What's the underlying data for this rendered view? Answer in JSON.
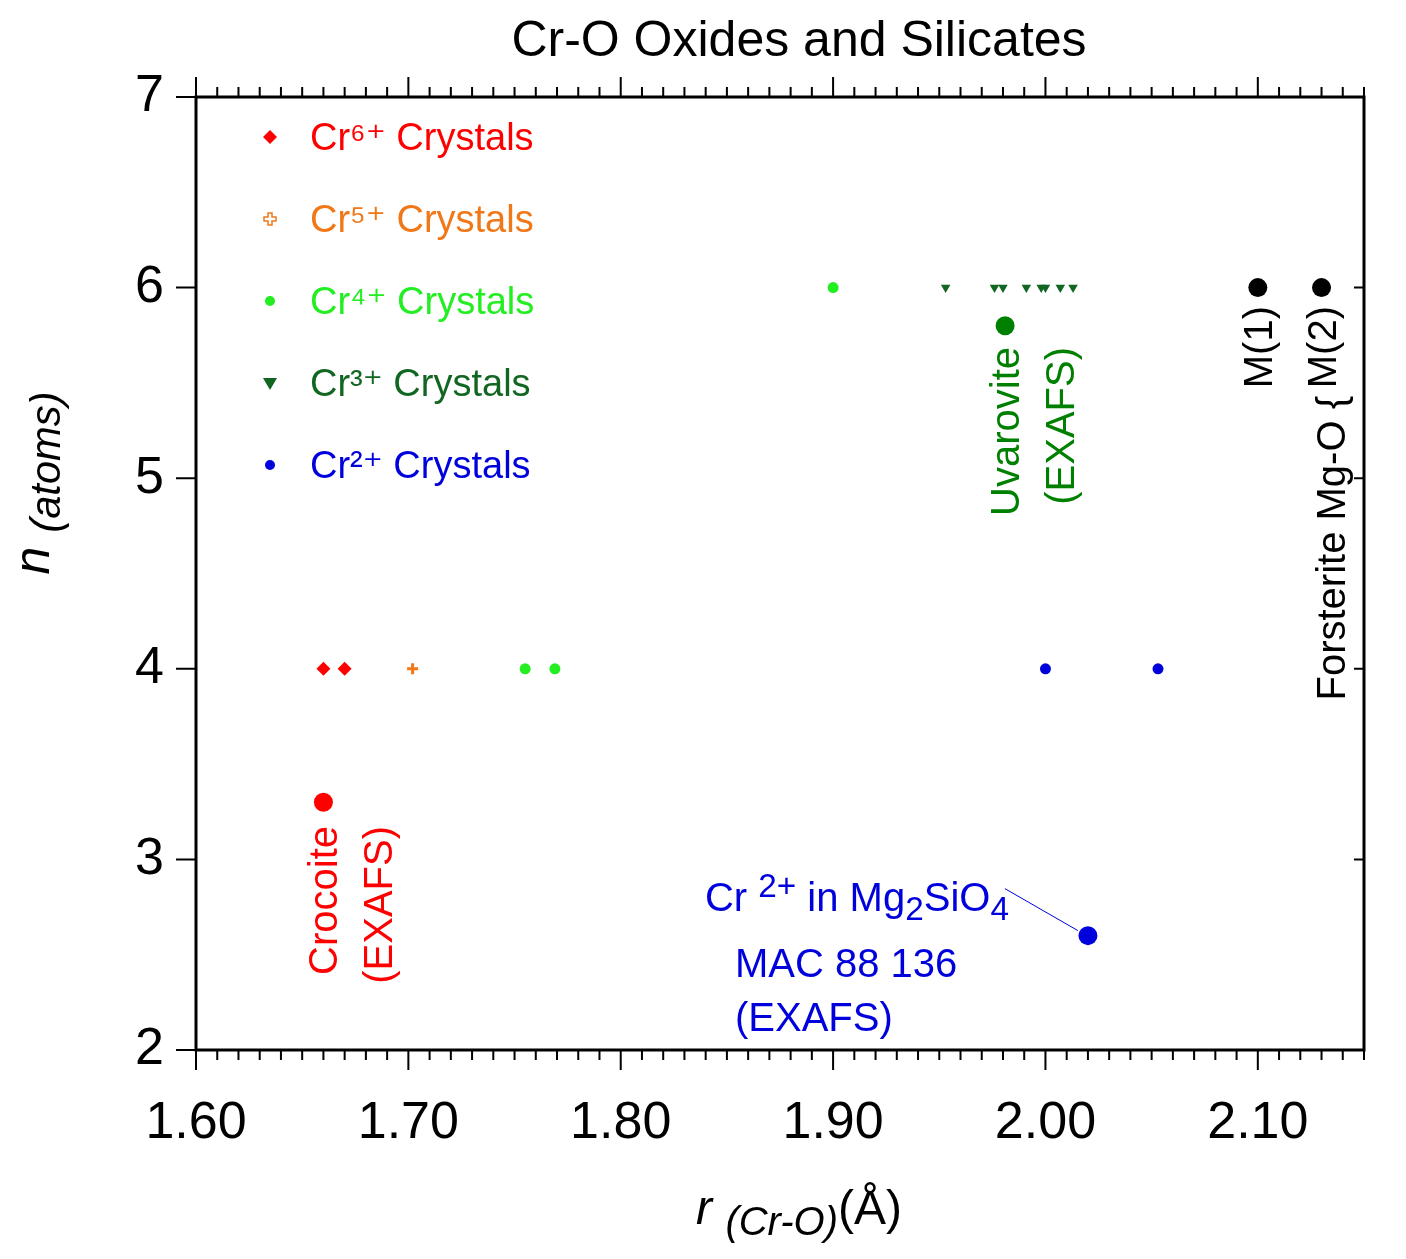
{
  "chart_data": {
    "type": "scatter",
    "title": "Cr-O Oxides and Silicates",
    "xlabel": "r $_{(Cr-O)}$(Å)",
    "ylabel": "n $_{(atoms)}$",
    "xlim": [
      1.6,
      2.15
    ],
    "ylim": [
      2,
      7
    ],
    "xticks": [
      {
        "value": 1.6,
        "label": "1.60"
      },
      {
        "value": 1.61,
        "label": null
      },
      {
        "value": 1.62,
        "label": null
      },
      {
        "value": 1.63,
        "label": null
      },
      {
        "value": 1.64,
        "label": null
      },
      {
        "value": 1.65,
        "label": null
      },
      {
        "value": 1.66,
        "label": null
      },
      {
        "value": 1.67,
        "label": null
      },
      {
        "value": 1.68,
        "label": null
      },
      {
        "value": 1.69,
        "label": null
      },
      {
        "value": 1.7,
        "label": "1.70"
      },
      {
        "value": 1.71,
        "label": null
      },
      {
        "value": 1.72,
        "label": null
      },
      {
        "value": 1.73,
        "label": null
      },
      {
        "value": 1.74,
        "label": null
      },
      {
        "value": 1.75,
        "label": null
      },
      {
        "value": 1.76,
        "label": null
      },
      {
        "value": 1.77,
        "label": null
      },
      {
        "value": 1.78,
        "label": null
      },
      {
        "value": 1.79,
        "label": null
      },
      {
        "value": 1.8,
        "label": "1.80"
      },
      {
        "value": 1.81,
        "label": null
      },
      {
        "value": 1.82,
        "label": null
      },
      {
        "value": 1.83,
        "label": null
      },
      {
        "value": 1.84,
        "label": null
      },
      {
        "value": 1.85,
        "label": null
      },
      {
        "value": 1.86,
        "label": null
      },
      {
        "value": 1.87,
        "label": null
      },
      {
        "value": 1.88,
        "label": null
      },
      {
        "value": 1.89,
        "label": null
      },
      {
        "value": 1.9,
        "label": "1.90"
      },
      {
        "value": 1.91,
        "label": null
      },
      {
        "value": 1.92,
        "label": null
      },
      {
        "value": 1.93,
        "label": null
      },
      {
        "value": 1.94,
        "label": null
      },
      {
        "value": 1.95,
        "label": null
      },
      {
        "value": 1.96,
        "label": null
      },
      {
        "value": 1.97,
        "label": null
      },
      {
        "value": 1.98,
        "label": null
      },
      {
        "value": 1.99,
        "label": null
      },
      {
        "value": 2.0,
        "label": "2.00"
      },
      {
        "value": 2.01,
        "label": null
      },
      {
        "value": 2.02,
        "label": null
      },
      {
        "value": 2.03,
        "label": null
      },
      {
        "value": 2.04,
        "label": null
      },
      {
        "value": 2.05,
        "label": null
      },
      {
        "value": 2.06,
        "label": null
      },
      {
        "value": 2.07,
        "label": null
      },
      {
        "value": 2.08,
        "label": null
      },
      {
        "value": 2.09,
        "label": null
      },
      {
        "value": 2.1,
        "label": "2.10"
      },
      {
        "value": 2.11,
        "label": null
      },
      {
        "value": 2.12,
        "label": null
      },
      {
        "value": 2.13,
        "label": null
      },
      {
        "value": 2.14,
        "label": null
      },
      {
        "value": 2.15,
        "label": null
      }
    ],
    "yticks": [
      2,
      3,
      4,
      5,
      6,
      7
    ],
    "grid": false,
    "legend": "top left",
    "series": [
      {
        "name": "Cr⁶⁺ Crystals",
        "color": "#ff0000",
        "marker": "diamond",
        "x": [
          1.66,
          1.67
        ],
        "values": [
          4,
          4
        ]
      },
      {
        "name": "Cr⁵⁺ Crystals",
        "color": "#f07818",
        "marker": "cross",
        "x": [
          1.702
        ],
        "values": [
          4
        ]
      },
      {
        "name": "Cr⁴⁺ Crystals",
        "color": "#22ee22",
        "marker": "circle",
        "x": [
          1.755,
          1.769,
          1.9
        ],
        "values": [
          4,
          4,
          6
        ]
      },
      {
        "name": "Cr³⁺ Crystals",
        "color": "#116622",
        "marker": "triangle",
        "x": [
          1.953,
          1.976,
          1.98,
          1.991,
          1.998,
          2.0,
          2.007,
          2.013
        ],
        "values": [
          6,
          6,
          6,
          6,
          6,
          6,
          6,
          6
        ]
      },
      {
        "name": "Cr²⁺ Crystals",
        "color": "#0000dd",
        "marker": "circle",
        "x": [
          2.0,
          2.053
        ],
        "values": [
          4,
          4
        ]
      },
      {
        "color": "#ff0000",
        "marker": "circle",
        "x": [
          1.66
        ],
        "values": [
          3.3
        ]
      },
      {
        "color": "#008000",
        "marker": "circle",
        "x": [
          1.981
        ],
        "values": [
          5.8
        ]
      },
      {
        "color": "#0000dd",
        "marker": "circle",
        "x": [
          2.02
        ],
        "values": [
          2.6
        ]
      },
      {
        "color": "#000000",
        "marker": "circle",
        "x": [
          2.1,
          2.13
        ],
        "values": [
          6,
          6
        ]
      }
    ],
    "annotations": [
      {
        "text": "Crocoite\n(EXAFS)",
        "x": 1.66,
        "y": 3.3
      },
      {
        "text": "Uvarovite\n(EXAFS)",
        "x": 1.981,
        "y": 5.8
      },
      {
        "text": "Cr $^{2+}$ in Mg$_{2}$SiO$_{4}$",
        "x": 2.02,
        "y": 2.6
      },
      "MAC 88 136",
      "(EXAFS)",
      {
        "text": "M(1)",
        "x": 2.1,
        "y": 6
      },
      {
        "text": "M(2)",
        "x": 2.13,
        "y": 6
      },
      "Forsterite Mg-O {"
    ]
  }
}
